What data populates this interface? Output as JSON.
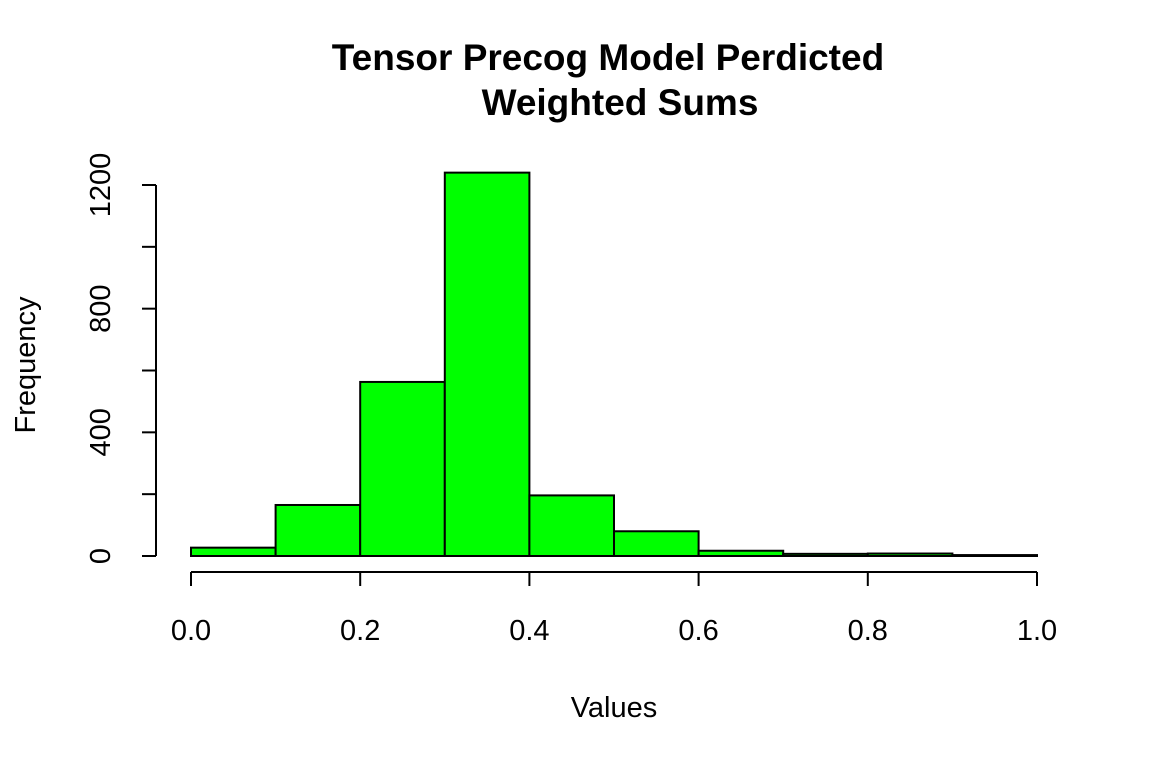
{
  "chart_data": {
    "type": "bar",
    "title": "Tensor Precog Model Perdicted",
    "subtitle": "Weighted Sums",
    "xlabel": "Values",
    "ylabel": "Frequency",
    "bin_edges": [
      0.0,
      0.1,
      0.2,
      0.3,
      0.4,
      0.5,
      0.6,
      0.7,
      0.8,
      0.9,
      1.0
    ],
    "values": [
      27,
      165,
      563,
      1240,
      196,
      80,
      17,
      7,
      8,
      3
    ],
    "xlim": [
      0.0,
      1.0
    ],
    "ylim": [
      0,
      1200
    ],
    "x_ticks": [
      "0.0",
      "0.2",
      "0.4",
      "0.6",
      "0.8",
      "1.0"
    ],
    "y_ticks": [
      "0",
      "400",
      "800",
      "1200"
    ],
    "bar_color": "#00ff00",
    "grid": false,
    "legend": "none"
  }
}
